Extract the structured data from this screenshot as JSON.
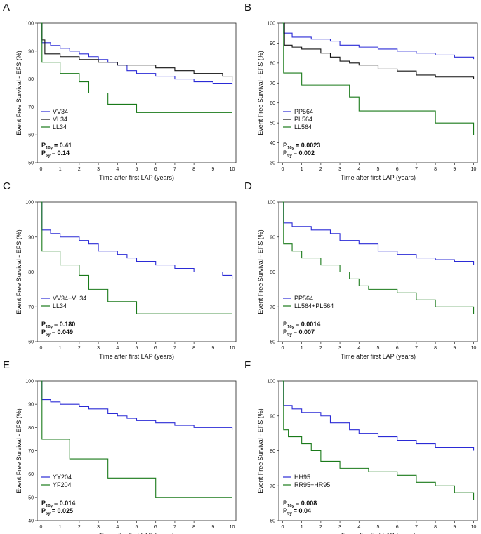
{
  "chart_data": [
    {
      "type": "line",
      "step": true,
      "label": "A",
      "xlabel": "Time after first LAP (years)",
      "ylabel": "Event Free Survival - EFS (%)",
      "xlim": [
        -0.2,
        10.2
      ],
      "ylim": [
        50,
        100
      ],
      "xticks": [
        0,
        1,
        2,
        3,
        4,
        5,
        6,
        7,
        8,
        9,
        10
      ],
      "yticks": [
        50,
        60,
        70,
        80,
        90,
        100
      ],
      "series": [
        {
          "name": "VV34",
          "color": "#2b2bd6",
          "x": [
            0,
            0.05,
            0.5,
            1,
            1.5,
            2,
            2.5,
            3,
            3.5,
            4,
            4.5,
            5,
            6,
            7,
            8,
            9,
            10
          ],
          "values": [
            100,
            93,
            92,
            91,
            90,
            89,
            88,
            87,
            86,
            85,
            83,
            82,
            81,
            80,
            79,
            78.5,
            78
          ]
        },
        {
          "name": "VL34",
          "color": "#111111",
          "x": [
            0,
            0.05,
            0.2,
            1,
            2,
            3,
            4,
            6,
            7,
            8,
            9.5,
            10
          ],
          "values": [
            100,
            94,
            89,
            88,
            87,
            86,
            85,
            84,
            83,
            82,
            81,
            79
          ]
        },
        {
          "name": "LL34",
          "color": "#1a7a1a",
          "x": [
            0,
            0.05,
            1,
            2,
            2.5,
            3.5,
            5,
            10
          ],
          "values": [
            100,
            86,
            82,
            79,
            75,
            71,
            68,
            68
          ]
        }
      ],
      "annotations": [
        {
          "p": "P",
          "sub": "10y",
          "text": "= 0.41"
        },
        {
          "p": "P",
          "sub": "5y",
          "text": "= 0.14"
        }
      ]
    },
    {
      "type": "line",
      "step": true,
      "label": "B",
      "xlabel": "Time after first LAP (years)",
      "ylabel": "Event Free Survival - EFS (%)",
      "xlim": [
        -0.2,
        10.2
      ],
      "ylim": [
        30,
        100
      ],
      "xticks": [
        0,
        1,
        2,
        3,
        4,
        5,
        6,
        7,
        8,
        9,
        10
      ],
      "yticks": [
        30,
        40,
        50,
        60,
        70,
        80,
        90,
        100
      ],
      "series": [
        {
          "name": "PP564",
          "color": "#2b2bd6",
          "x": [
            0,
            0.05,
            0.5,
            1.5,
            2.5,
            3,
            4,
            5,
            6,
            7,
            8,
            9,
            10
          ],
          "values": [
            100,
            95,
            93,
            92,
            91,
            89,
            88,
            87,
            86,
            85,
            84,
            83,
            82
          ]
        },
        {
          "name": "PL564",
          "color": "#111111",
          "x": [
            0,
            0.1,
            0.5,
            1,
            2,
            2.5,
            3,
            3.5,
            4,
            5,
            6,
            7,
            8,
            10
          ],
          "values": [
            100,
            89,
            88,
            87,
            85,
            83,
            81,
            80,
            79,
            77,
            76,
            74,
            73,
            72
          ]
        },
        {
          "name": "LL564",
          "color": "#1a7a1a",
          "x": [
            0,
            0.05,
            1,
            3.5,
            4,
            8,
            10
          ],
          "values": [
            100,
            75,
            69,
            63,
            56,
            50,
            44
          ]
        }
      ],
      "annotations": [
        {
          "p": "P",
          "sub": "10y",
          "text": "= 0.0023"
        },
        {
          "p": "P",
          "sub": "5y",
          "text": "= 0.002"
        }
      ]
    },
    {
      "type": "line",
      "step": true,
      "label": "C",
      "xlabel": "Time after first LAP (years)",
      "ylabel": "Event Free Survival - EFS (%)",
      "xlim": [
        -0.2,
        10.2
      ],
      "ylim": [
        60,
        100
      ],
      "xticks": [
        0,
        1,
        2,
        3,
        4,
        5,
        6,
        7,
        8,
        9,
        10
      ],
      "yticks": [
        60,
        70,
        80,
        90,
        100
      ],
      "series": [
        {
          "name": "VV34+VL34",
          "color": "#2b2bd6",
          "x": [
            0,
            0.05,
            0.5,
            1,
            2,
            2.5,
            3,
            4,
            4.5,
            5,
            6,
            7,
            8,
            9.5,
            10
          ],
          "values": [
            100,
            92,
            91,
            90,
            89,
            88,
            86,
            85,
            84,
            83,
            82,
            81,
            80,
            79,
            78
          ]
        },
        {
          "name": "LL34",
          "color": "#1a7a1a",
          "x": [
            0,
            0.05,
            1,
            2,
            2.5,
            3.5,
            5,
            10
          ],
          "values": [
            100,
            86,
            82,
            79,
            75,
            71.5,
            68,
            68
          ]
        }
      ],
      "annotations": [
        {
          "p": "P",
          "sub": "10y",
          "text": "= 0.180"
        },
        {
          "p": "P",
          "sub": "5y",
          "text": "= 0.049"
        }
      ]
    },
    {
      "type": "line",
      "step": true,
      "label": "D",
      "xlabel": "Time after first LAP (years)",
      "ylabel": "Event Free Survival - EFS (%)",
      "xlim": [
        -0.2,
        10.2
      ],
      "ylim": [
        60,
        100
      ],
      "xticks": [
        0,
        1,
        2,
        3,
        4,
        5,
        6,
        7,
        8,
        9,
        10
      ],
      "yticks": [
        60,
        70,
        80,
        90,
        100
      ],
      "series": [
        {
          "name": "PP564",
          "color": "#2b2bd6",
          "x": [
            0,
            0.05,
            0.5,
            1.5,
            2.5,
            3,
            4,
            5,
            6,
            7,
            8,
            9,
            10
          ],
          "values": [
            100,
            94,
            93,
            92,
            91,
            89,
            88,
            86,
            85,
            84,
            83.5,
            83,
            82
          ]
        },
        {
          "name": "LL564+PL564",
          "color": "#1a7a1a",
          "x": [
            0,
            0.05,
            0.5,
            1,
            2,
            3,
            3.5,
            4,
            4.5,
            6,
            7,
            8,
            10
          ],
          "values": [
            100,
            88,
            86,
            84,
            82,
            80,
            78,
            76,
            75,
            74,
            72,
            70,
            68
          ]
        }
      ],
      "annotations": [
        {
          "p": "P",
          "sub": "10y",
          "text": "= 0.0014"
        },
        {
          "p": "P",
          "sub": "5y",
          "text": "= 0.007"
        }
      ]
    },
    {
      "type": "line",
      "step": true,
      "label": "E",
      "xlabel": "Time after first LAP (years)",
      "ylabel": "Event Free Survival - EFS (%)",
      "xlim": [
        -0.2,
        10.2
      ],
      "ylim": [
        40,
        100
      ],
      "xticks": [
        0,
        1,
        2,
        3,
        4,
        5,
        6,
        7,
        8,
        9,
        10
      ],
      "yticks": [
        40,
        50,
        60,
        70,
        80,
        90,
        100
      ],
      "series": [
        {
          "name": "YY204",
          "color": "#2b2bd6",
          "x": [
            0,
            0.05,
            0.5,
            1,
            2,
            2.5,
            3.5,
            4,
            4.5,
            5,
            6,
            7,
            8,
            10
          ],
          "values": [
            100,
            92,
            91,
            90,
            89,
            88,
            86,
            85,
            84,
            83,
            82,
            81,
            80,
            79
          ]
        },
        {
          "name": "YF204",
          "color": "#1a7a1a",
          "x": [
            0,
            0.05,
            1.5,
            3.5,
            6,
            10
          ],
          "values": [
            100,
            75,
            66.5,
            58.3,
            50,
            50
          ]
        }
      ],
      "annotations": [
        {
          "p": "P",
          "sub": "10y",
          "text": "= 0.014"
        },
        {
          "p": "P",
          "sub": "5y",
          "text": "= 0.025"
        }
      ]
    },
    {
      "type": "line",
      "step": true,
      "label": "F",
      "xlabel": "Time after first LAP (years)",
      "ylabel": "Event Free Survival - EFS (%)",
      "xlim": [
        -0.2,
        10.2
      ],
      "ylim": [
        60,
        100
      ],
      "xticks": [
        0,
        1,
        2,
        3,
        4,
        5,
        6,
        7,
        8,
        9,
        10
      ],
      "yticks": [
        60,
        70,
        80,
        90,
        100
      ],
      "series": [
        {
          "name": "HH95",
          "color": "#2b2bd6",
          "x": [
            0,
            0.05,
            0.5,
            1,
            2,
            2.5,
            3.5,
            4,
            5,
            6,
            7,
            8,
            10
          ],
          "values": [
            100,
            93,
            92,
            91,
            90,
            88,
            86,
            85,
            84,
            83,
            82,
            81,
            80
          ]
        },
        {
          "name": "RR95+HR95",
          "color": "#1a7a1a",
          "x": [
            0,
            0.05,
            0.3,
            1,
            1.5,
            2,
            3,
            4.5,
            6,
            7,
            8,
            9,
            10
          ],
          "values": [
            100,
            86,
            84,
            82,
            80,
            77,
            75,
            74,
            73,
            71,
            70,
            68,
            66
          ]
        }
      ],
      "annotations": [
        {
          "p": "P",
          "sub": "10y",
          "text": "= 0.008"
        },
        {
          "p": "P",
          "sub": "5y",
          "text": "= 0.04"
        }
      ]
    }
  ]
}
